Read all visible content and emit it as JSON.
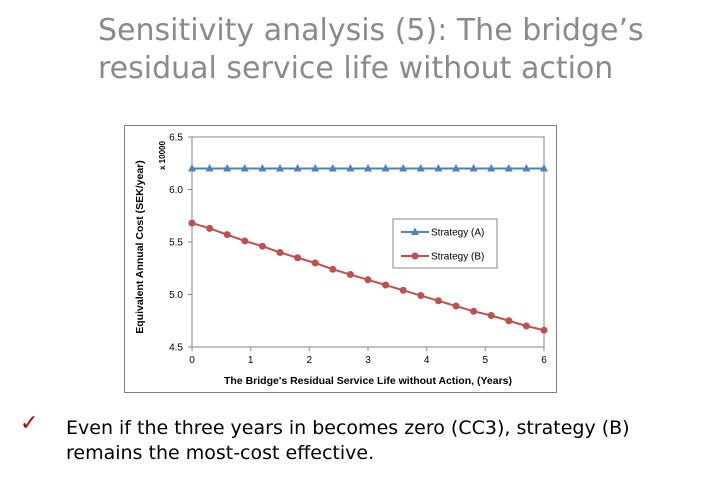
{
  "slide": {
    "title_line1": "Sensitivity analysis (5): The bridge’s",
    "title_line2": "residual service life without action",
    "bullet_icon": "check-mark-icon",
    "bullet_text": "Even if the three years in becomes zero (CC3), strategy (B) remains the most-cost effective."
  },
  "chart_data": {
    "type": "line",
    "title": "",
    "xlabel": "The Bridge's Residual Service Life without Action, (Years)",
    "ylabel": "Equivalent Annual Cost (SEK/year)",
    "y_multiplier_label": "x 10000",
    "xlim": [
      0,
      6
    ],
    "ylim": [
      4.5,
      6.5
    ],
    "x_ticks": [
      0,
      1,
      2,
      3,
      4,
      5,
      6
    ],
    "y_ticks": [
      "4.5",
      "5.0",
      "5.5",
      "6.0",
      "6.5"
    ],
    "grid": false,
    "legend_position": "center-right",
    "x": [
      0,
      0.3,
      0.6,
      0.9,
      1.2,
      1.5,
      1.8,
      2.1,
      2.4,
      2.7,
      3.0,
      3.3,
      3.6,
      3.9,
      4.2,
      4.5,
      4.8,
      5.1,
      5.4,
      5.7,
      6.0
    ],
    "series": [
      {
        "name": "Strategy (A)",
        "color": "#4f81bd",
        "marker": "triangle",
        "values": [
          6.2,
          6.2,
          6.2,
          6.2,
          6.2,
          6.2,
          6.2,
          6.2,
          6.2,
          6.2,
          6.2,
          6.2,
          6.2,
          6.2,
          6.2,
          6.2,
          6.2,
          6.2,
          6.2,
          6.2,
          6.2
        ]
      },
      {
        "name": "Strategy (B)",
        "color": "#c0504d",
        "marker": "circle",
        "values": [
          5.68,
          5.63,
          5.57,
          5.51,
          5.46,
          5.4,
          5.35,
          5.3,
          5.24,
          5.19,
          5.14,
          5.09,
          5.04,
          4.99,
          4.94,
          4.89,
          4.84,
          4.8,
          4.75,
          4.7,
          4.66
        ]
      }
    ]
  }
}
